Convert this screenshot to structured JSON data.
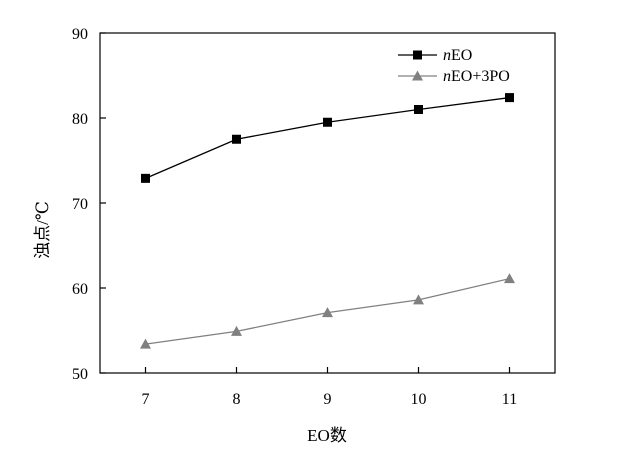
{
  "chart_data": {
    "type": "line",
    "title": "",
    "xlabel": "EO数",
    "ylabel": "浊点/℃",
    "x": [
      7,
      8,
      9,
      10,
      11
    ],
    "xlim": [
      6.5,
      11.5
    ],
    "ylim": [
      50,
      90
    ],
    "yticks": [
      50,
      60,
      70,
      80,
      90
    ],
    "grid": false,
    "legend_position": "top-right",
    "series": [
      {
        "name": "nEO",
        "name_italic": "n",
        "name_rest": "EO",
        "marker": "square",
        "color": "#000000",
        "values": [
          72.9,
          77.5,
          79.5,
          81.0,
          82.4
        ]
      },
      {
        "name": "nEO+3PO",
        "name_italic": "n",
        "name_rest": "EO+3PO",
        "marker": "triangle",
        "color": "#808080",
        "values": [
          53.4,
          54.9,
          57.1,
          58.6,
          61.1
        ]
      }
    ]
  }
}
